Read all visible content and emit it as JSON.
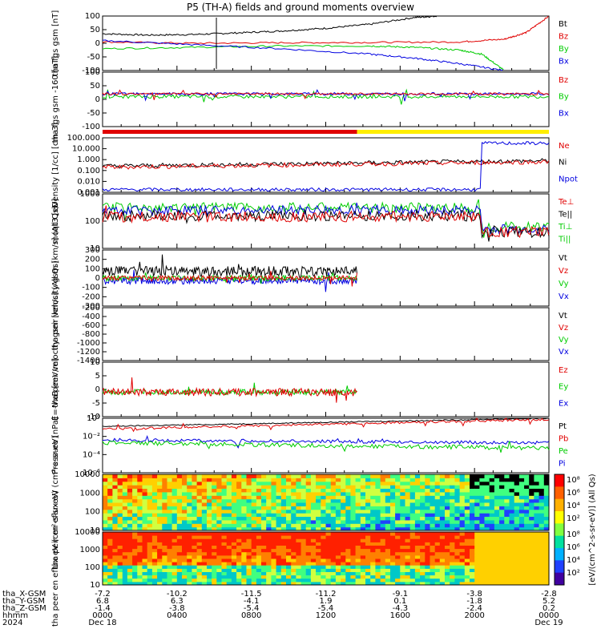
{
  "title": "P5 (TH-A) fields and ground moments overview",
  "chart_data": [
    {
      "type": "line",
      "ylabel": "tha fgs gsm [nT]",
      "yticks": [
        "100",
        "50",
        "0",
        "-50",
        "-100"
      ],
      "ylim": [
        -100,
        100
      ],
      "legend": [
        {
          "name": "Bt",
          "color": "#000000"
        },
        {
          "name": "Bz",
          "color": "#e00000"
        },
        {
          "name": "By",
          "color": "#00cc00"
        },
        {
          "name": "Bx",
          "color": "#0000e0"
        }
      ],
      "series": [
        {
          "name": "Bt",
          "color": "#000000",
          "x": [
            0,
            0.1,
            0.2,
            0.3,
            0.4,
            0.5,
            0.6,
            0.7,
            0.75
          ],
          "y": [
            35,
            30,
            32,
            38,
            45,
            55,
            70,
            95,
            100
          ]
        },
        {
          "name": "Bz",
          "color": "#e00000",
          "x": [
            0,
            0.2,
            0.4,
            0.6,
            0.8,
            0.9,
            0.95,
            1.0
          ],
          "y": [
            5,
            0,
            2,
            3,
            5,
            15,
            40,
            100
          ]
        },
        {
          "name": "By",
          "color": "#00cc00",
          "x": [
            0,
            0.2,
            0.4,
            0.6,
            0.7,
            0.8,
            0.85,
            0.9
          ],
          "y": [
            -20,
            -15,
            -10,
            -10,
            -15,
            -25,
            -40,
            -100
          ]
        },
        {
          "name": "Bx",
          "color": "#0000e0",
          "x": [
            0,
            0.2,
            0.4,
            0.6,
            0.7,
            0.8,
            0.9
          ],
          "y": [
            10,
            -5,
            -20,
            -40,
            -55,
            -75,
            -100
          ]
        }
      ]
    },
    {
      "type": "line",
      "ylabel": "tha fgs gsm -160 [nT]",
      "yticks": [
        "100",
        "50",
        "0",
        "-50",
        "-100"
      ],
      "ylim": [
        -120,
        100
      ],
      "legend": [
        {
          "name": "Bz",
          "color": "#e00000"
        },
        {
          "name": "By",
          "color": "#00cc00"
        },
        {
          "name": "Bx",
          "color": "#0000e0"
        }
      ]
    },
    {
      "type": "line",
      "ylabel": "Density [1/cc] [cm-3]",
      "yticks": [
        "100.000",
        "10.000",
        "1.000",
        "0.100",
        "0.010",
        "0.001"
      ],
      "scale": "log",
      "legend": [
        {
          "name": "Ne",
          "color": "#e00000"
        },
        {
          "name": "Ni",
          "color": "#000000"
        },
        {
          "name": "Npot",
          "color": "#0000e0"
        }
      ]
    },
    {
      "type": "line",
      "ylabel": "moqt3 [eV]",
      "yticks": [
        "1000",
        "100",
        "10"
      ],
      "scale": "log",
      "legend": [
        {
          "name": "Te⊥",
          "color": "#e00000"
        },
        {
          "name": "Te||",
          "color": "#000000"
        },
        {
          "name": "Ti⊥",
          "color": "#00cc00"
        },
        {
          "name": "Ti||",
          "color": "#00cc00"
        }
      ]
    },
    {
      "type": "line",
      "ylabel": "tha peir velocity gsm [km/s] (All Qs)",
      "yticks": [
        "300",
        "200",
        "100",
        "0",
        "-100",
        "-200",
        "-300"
      ],
      "ylim": [
        -300,
        300
      ],
      "legend": [
        {
          "name": "Vt",
          "color": "#000000"
        },
        {
          "name": "Vz",
          "color": "#e00000"
        },
        {
          "name": "Vy",
          "color": "#00cc00"
        },
        {
          "name": "Vx",
          "color": "#0000e0"
        }
      ]
    },
    {
      "type": "line",
      "ylabel": "tha peer velocity gsm [km/s] (All Qs)",
      "yticks": [
        "-200",
        "-400",
        "-600",
        "-800",
        "-1000",
        "-1200",
        "-1400"
      ],
      "ylim": [
        -1400,
        -200
      ],
      "legend": [
        {
          "name": "Vt",
          "color": "#000000"
        },
        {
          "name": "Vz",
          "color": "#e00000"
        },
        {
          "name": "Vy",
          "color": "#00cc00"
        },
        {
          "name": "Vx",
          "color": "#0000e0"
        }
      ]
    },
    {
      "type": "line",
      "ylabel": "E=-VxB [mV/m]",
      "yticks": [
        "10",
        "5",
        "0",
        "-5",
        "-10"
      ],
      "ylim": [
        -12,
        10
      ],
      "legend": [
        {
          "name": "Ez",
          "color": "#e00000"
        },
        {
          "name": "Ey",
          "color": "#00cc00"
        },
        {
          "name": "Ex",
          "color": "#0000e0"
        }
      ]
    },
    {
      "type": "line",
      "ylabel": "Pressure [nPa]",
      "yticks": [
        "10⁰",
        "10⁻²",
        "10⁻⁴",
        "10⁻⁶"
      ],
      "scale": "log",
      "legend": [
        {
          "name": "Pt",
          "color": "#000000"
        },
        {
          "name": "Pb",
          "color": "#e00000"
        },
        {
          "name": "Pe",
          "color": "#00cc00"
        },
        {
          "name": "Pi",
          "color": "#0000e0"
        }
      ]
    },
    {
      "type": "heatmap",
      "ylabel": "tha peir en eflux eV (cm²-s-sr-eV)",
      "yticks": [
        "10000",
        "1000",
        "100",
        "10"
      ],
      "scale": "log"
    },
    {
      "type": "heatmap",
      "ylabel": "tha peer en eflux eV (cm²-s-sr-eV)",
      "yticks": [
        "10000",
        "1000",
        "100",
        "10"
      ],
      "scale": "log"
    }
  ],
  "colorbar": {
    "label": "[eV/(cm^2-s-sr-eV)] (All Qs)",
    "ticks_top": [
      "10⁸",
      "10⁶",
      "10⁴",
      "10²"
    ],
    "ticks_bottom": [
      "10⁸",
      "10⁶",
      "10⁴",
      "10²"
    ]
  },
  "xaxis": {
    "rows": [
      {
        "name": "tha_X-GSM",
        "values": [
          "-7.2",
          "-10.2",
          "-11.5",
          "-11.2",
          "-9.1",
          "-3.8",
          "-2.8"
        ]
      },
      {
        "name": "tha_Y-GSM",
        "values": [
          "6.8",
          "6.3",
          "-4.1",
          "1.9",
          "0.1",
          "-1.8",
          "5.2"
        ]
      },
      {
        "name": "tha_Z-GSM",
        "values": [
          "-1.4",
          "-3.8",
          "-5.4",
          "-5.4",
          "-4.3",
          "-2.4",
          "0.2"
        ]
      },
      {
        "name": "hhmm",
        "values": [
          "0000",
          "0400",
          "0800",
          "1200",
          "1600",
          "2000",
          "0000"
        ]
      },
      {
        "name": "2024",
        "values": [
          "Dec 18",
          "",
          "",
          "",
          "",
          "",
          "Dec 19"
        ]
      }
    ]
  }
}
